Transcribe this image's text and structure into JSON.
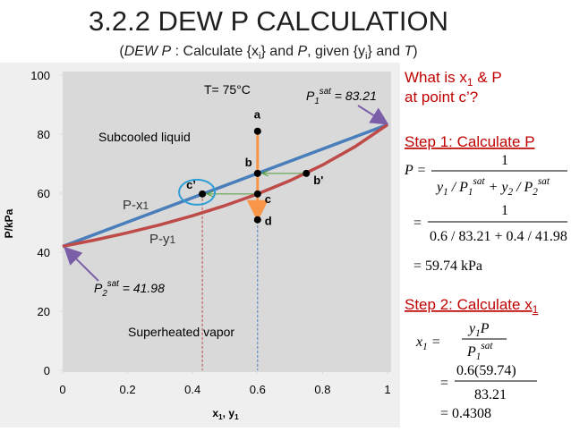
{
  "title": "3.2.2 DEW P CALCULATION",
  "subtitle": [
    "(",
    "DEW P",
    " : Calculate {x",
    "i",
    "} and ",
    "P",
    ", given {y",
    "i",
    "} and ",
    "T",
    ")"
  ],
  "chart_data": {
    "type": "line",
    "ylabel": "P/kPa",
    "xlabel": [
      "x",
      "1",
      ", y",
      "1"
    ],
    "xlim": [
      0,
      1
    ],
    "ylim": [
      0,
      100
    ],
    "xticks": [
      0,
      0.2,
      0.4,
      0.6,
      0.8,
      1
    ],
    "yticks": [
      0,
      20,
      40,
      60,
      80,
      100
    ],
    "series": [
      {
        "color": "#4a7ebb",
        "x": [
          0,
          1
        ],
        "values": [
          41.98,
          83.21
        ]
      },
      {
        "color": "#be4b48",
        "x": [
          0,
          0.1,
          0.2,
          0.3,
          0.4,
          0.5,
          0.6,
          0.7,
          0.8,
          0.9,
          1
        ],
        "values": [
          41.98,
          44.17,
          46.6,
          49.31,
          52.36,
          55.81,
          59.74,
          64.27,
          69.55,
          75.77,
          83.21
        ]
      }
    ],
    "points": [
      {
        "label": "a",
        "x": 0.6,
        "y": 81
      },
      {
        "label": "b",
        "x": 0.6,
        "y": 66.72
      },
      {
        "label": "b'",
        "x": 0.75,
        "y": 66.72
      },
      {
        "label": "c’",
        "x": 0.43,
        "y": 59.74
      },
      {
        "label": "c",
        "x": 0.6,
        "y": 59.74
      },
      {
        "label": "d",
        "x": 0.6,
        "y": 51
      }
    ],
    "annotations": {
      "temperature": "T= 75°C",
      "p1sat": [
        "P",
        "1",
        "sat",
        " = 83.21"
      ],
      "p2sat": [
        "P",
        "2",
        "sat",
        " = 41.98"
      ],
      "subcooled": "Subcooled liquid",
      "superheated": "Superheated vapor",
      "px": [
        "P-x",
        "1"
      ],
      "py": [
        "P-y",
        "1"
      ]
    }
  },
  "panel": {
    "question": [
      "What is x",
      "1",
      " & P",
      "at point c’?"
    ],
    "step1": "Step 1: Calculate P",
    "eq1": {
      "lhs": "P =",
      "num": "1",
      "den": [
        "y",
        "1",
        " / P",
        "1",
        "sat",
        " + y",
        "2",
        " / P",
        "2",
        "sat"
      ]
    },
    "eq2": {
      "lhs": "=",
      "num": "1",
      "den": "0.6 / 83.21 + 0.4 / 41.98"
    },
    "eq3": "= 59.74 kPa",
    "step2": [
      "Step 2: Calculate x",
      "1"
    ],
    "eq4": {
      "lhs": [
        "x",
        "1",
        " ="
      ],
      "num": [
        "y",
        "1",
        "P"
      ],
      "den": [
        "P",
        "1",
        "sat"
      ]
    },
    "eq5": {
      "lhs": "=",
      "num": "0.6(59.74)",
      "den": "83.21"
    },
    "eq6": "= 0.4308"
  }
}
